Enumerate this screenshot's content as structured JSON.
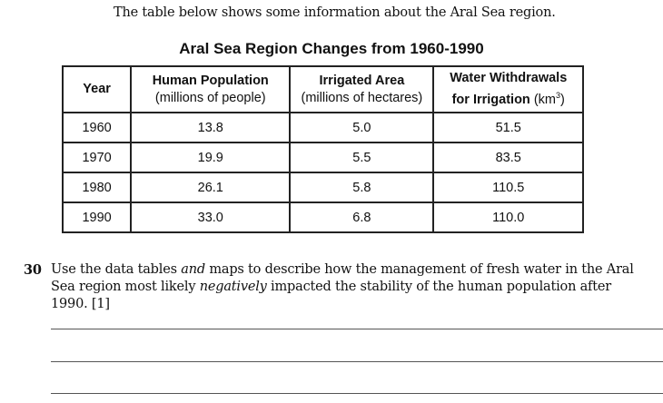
{
  "intro_text": "The table below shows some information about the Aral Sea region.",
  "table": {
    "title": "Aral Sea Region Changes from 1960-1990",
    "headers": {
      "year": "Year",
      "population_line1": "Human Population",
      "population_line2": "(millions of people)",
      "irrigated_line1": "Irrigated Area",
      "irrigated_line2": "(millions of hectares)",
      "water_line1": "Water Withdrawals",
      "water_line2a": "for Irrigation",
      "water_line2b": "(km",
      "water_sup": "3",
      "water_line2c": ")"
    },
    "rows": [
      {
        "year": "1960",
        "population": "13.8",
        "irrigated": "5.0",
        "water": "51.5"
      },
      {
        "year": "1970",
        "population": "19.9",
        "irrigated": "5.5",
        "water": "83.5"
      },
      {
        "year": "1980",
        "population": "26.1",
        "irrigated": "5.8",
        "water": "110.5"
      },
      {
        "year": "1990",
        "population": "33.0",
        "irrigated": "6.8",
        "water": "110.0"
      }
    ]
  },
  "question": {
    "number": "30",
    "text_1": "Use the data tables ",
    "text_and": "and",
    "text_2": " maps to describe how the management of fresh water in the Aral Sea region most likely ",
    "text_neg": "negatively",
    "text_3": " impacted the stability of the human population after 1990.  [1]"
  }
}
